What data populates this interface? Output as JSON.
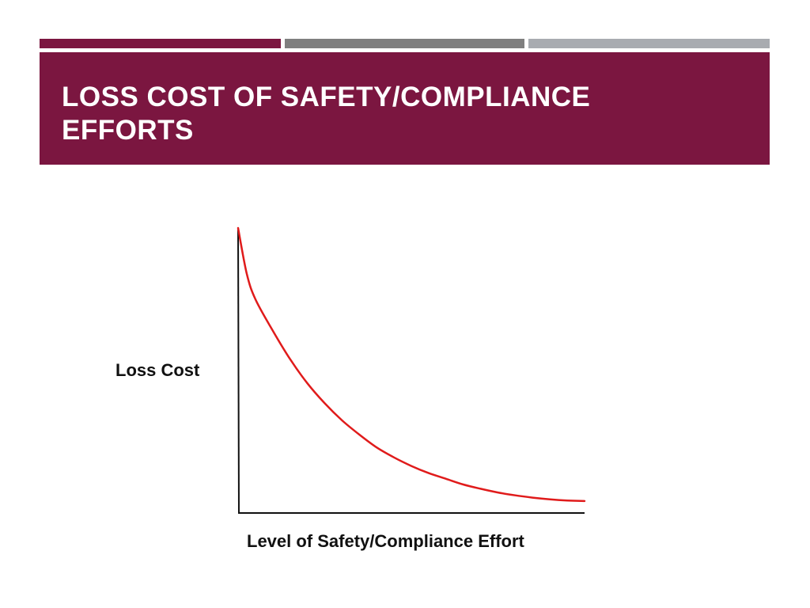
{
  "slide": {
    "title": "LOSS COST OF SAFETY/COMPLIANCE EFFORTS",
    "colors": {
      "accent_maroon": "#7b1640",
      "bar_dark_gray": "#7f7f7f",
      "bar_light_gray": "#a8abb0",
      "curve_red": "#e01b1b",
      "axis_black": "#111111"
    }
  },
  "chart_data": {
    "type": "line",
    "title": "",
    "xlabel": "Level of Safety/Compliance Effort",
    "ylabel": "Loss Cost",
    "xlim": [
      0,
      10
    ],
    "ylim": [
      0,
      10
    ],
    "grid": false,
    "ticks": false,
    "series": [
      {
        "x": [
          0,
          0.25,
          0.5,
          1,
          1.5,
          2,
          2.5,
          3,
          3.5,
          4,
          4.5,
          5,
          5.5,
          6,
          6.5,
          7,
          7.5,
          8,
          8.5,
          9,
          9.5,
          10
        ],
        "values": [
          10,
          8.4,
          7.5,
          6.4,
          5.4,
          4.55,
          3.85,
          3.25,
          2.75,
          2.3,
          1.95,
          1.65,
          1.4,
          1.2,
          1.0,
          0.85,
          0.72,
          0.62,
          0.54,
          0.48,
          0.44,
          0.42
        ]
      }
    ]
  }
}
